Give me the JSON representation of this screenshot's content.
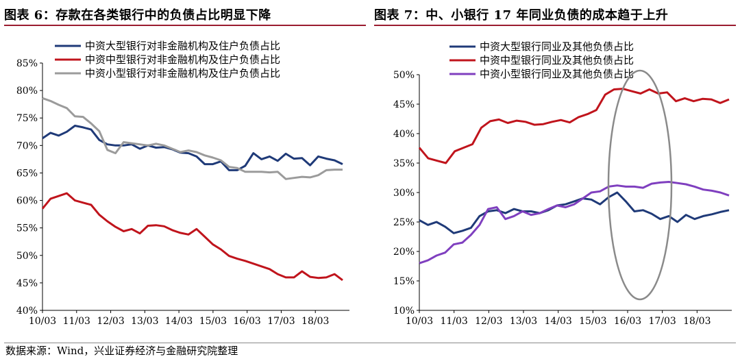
{
  "left": {
    "title": "图表 6：存款在各类银行中的负债占比明显下降",
    "chart_data": {
      "type": "line",
      "title": "",
      "xlabel": "",
      "ylabel": "",
      "ylim": [
        40,
        85
      ],
      "yticks": [
        "40%",
        "45%",
        "50%",
        "55%",
        "60%",
        "65%",
        "70%",
        "75%",
        "80%",
        "85%"
      ],
      "xticks": [
        "10/03",
        "11/03",
        "12/03",
        "13/03",
        "14/03",
        "15/03",
        "16/03",
        "17/03",
        "18/03"
      ],
      "legend_position": "top",
      "series": [
        {
          "name": "中资大型银行对非金融机构及住户负债占比",
          "color": "#1f3a78",
          "values": [
            71.3,
            72.3,
            71.8,
            72.5,
            73.6,
            73.3,
            72.9,
            71.0,
            70.2,
            70.0,
            70.0,
            70.2,
            69.4,
            70.0,
            69.6,
            69.7,
            69.3,
            68.7,
            68.6,
            68.0,
            66.6,
            66.6,
            67.1,
            65.5,
            65.5,
            66.3,
            68.6,
            67.5,
            68.0,
            67.2,
            68.5,
            67.6,
            67.7,
            66.4,
            68.0,
            67.6,
            67.3,
            66.6
          ]
        },
        {
          "name": "中资中型银行对非金融机构及住户负债占比",
          "color": "#c0141c",
          "values": [
            58.5,
            60.3,
            60.8,
            61.3,
            60.0,
            59.6,
            59.2,
            57.4,
            56.2,
            55.2,
            54.4,
            54.8,
            54.0,
            55.4,
            55.5,
            55.3,
            54.6,
            54.1,
            53.8,
            54.8,
            53.4,
            52.0,
            51.1,
            49.9,
            49.4,
            49.0,
            48.5,
            48.0,
            47.5,
            46.6,
            46.0,
            46.0,
            47.1,
            46.1,
            45.9,
            46.0,
            46.6,
            45.5
          ]
        },
        {
          "name": "中资小型银行对非金融机构及住户负债占比",
          "color": "#9b9b9b",
          "values": [
            78.6,
            78.1,
            77.4,
            76.8,
            75.3,
            75.2,
            74.0,
            72.6,
            69.2,
            68.6,
            70.6,
            70.4,
            70.2,
            70.0,
            70.3,
            70.0,
            69.4,
            68.8,
            69.1,
            68.8,
            68.2,
            67.8,
            67.3,
            66.1,
            65.9,
            65.2,
            65.2,
            65.2,
            65.1,
            65.2,
            63.9,
            64.1,
            64.3,
            64.2,
            64.6,
            65.5,
            65.6,
            65.6
          ]
        }
      ]
    }
  },
  "right": {
    "title": "图表 7：中、小银行 17 年同业负债的成本趋于上升",
    "chart_data": {
      "type": "line",
      "title": "",
      "xlabel": "",
      "ylabel": "",
      "ylim": [
        10,
        50
      ],
      "yticks": [
        "10%",
        "15%",
        "20%",
        "25%",
        "30%",
        "35%",
        "40%",
        "45%",
        "50%"
      ],
      "xticks": [
        "10/03",
        "11/03",
        "12/03",
        "13/03",
        "14/03",
        "15/03",
        "16/03",
        "17/03",
        "18/03"
      ],
      "legend_position": "top",
      "annotation": "ellipse highlighting 2016–2017",
      "series": [
        {
          "name": "中资大型银行同业及其他负债占比",
          "color": "#1f3a78",
          "values": [
            25.3,
            24.5,
            25.0,
            24.2,
            23.1,
            23.5,
            24.0,
            26.0,
            26.8,
            27.0,
            26.5,
            27.2,
            26.8,
            26.8,
            26.5,
            27.0,
            27.8,
            28.0,
            28.5,
            29.0,
            28.8,
            28.0,
            29.2,
            30.0,
            28.5,
            26.8,
            27.0,
            26.4,
            25.5,
            26.0,
            25.0,
            26.2,
            25.5,
            26.0,
            26.3,
            26.7,
            27.0
          ]
        },
        {
          "name": "中资中型银行同业及其他负债占比",
          "color": "#c0141c",
          "values": [
            37.6,
            35.8,
            35.4,
            35.0,
            37.0,
            37.6,
            38.2,
            41.0,
            42.1,
            42.4,
            41.8,
            42.2,
            42.0,
            41.5,
            41.6,
            42.0,
            42.3,
            41.9,
            42.8,
            43.3,
            44.0,
            46.6,
            47.5,
            47.6,
            47.2,
            46.8,
            47.5,
            46.8,
            47.0,
            45.5,
            46.0,
            45.5,
            45.9,
            45.8,
            45.2,
            45.8
          ]
        },
        {
          "name": "中资小型银行同业及其他负债占比",
          "color": "#7f3fbf",
          "values": [
            18.0,
            18.5,
            19.3,
            19.8,
            21.2,
            21.5,
            22.8,
            24.5,
            27.2,
            27.5,
            25.5,
            26.0,
            26.8,
            26.2,
            26.5,
            27.2,
            27.8,
            27.5,
            28.0,
            29.0,
            30.0,
            30.2,
            31.0,
            31.2,
            31.0,
            31.0,
            30.8,
            31.5,
            31.7,
            31.8,
            31.6,
            31.4,
            31.0,
            30.5,
            30.3,
            30.0,
            29.5
          ]
        }
      ]
    }
  },
  "source": "数据来源：Wind，兴业证券经济与金融研究院整理"
}
